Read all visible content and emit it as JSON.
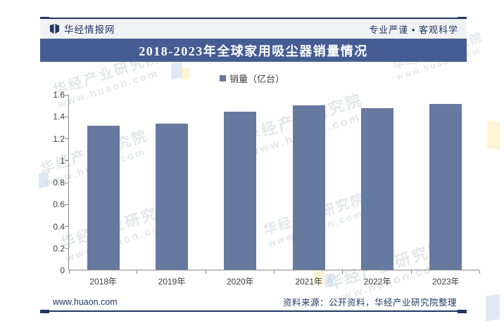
{
  "header": {
    "brand": "华经情报网",
    "slogan": "专业严谨 • 客观科学"
  },
  "banner": {
    "title": "2018-2023年全球家用吸尘器销量情况"
  },
  "legend": {
    "label": "销量（亿台）"
  },
  "chart_data": {
    "type": "bar",
    "title": "2018-2023年全球家用吸尘器销量情况",
    "series_name": "销量（亿台）",
    "categories": [
      "2018年",
      "2019年",
      "2020年",
      "2021年",
      "2022年",
      "2023年"
    ],
    "values": [
      1.31,
      1.33,
      1.44,
      1.5,
      1.47,
      1.51
    ],
    "xlabel": "",
    "ylabel": "销量（亿台）",
    "ylim": [
      0,
      1.6
    ],
    "y_ticks": [
      "0",
      "0.2",
      "0.4",
      "0.6",
      "0.8",
      "1",
      "1.2",
      "1.4",
      "1.6"
    ],
    "grid": false,
    "legend_position": "top",
    "bar_color": "#66799F"
  },
  "footer": {
    "site": "www.huaon.com",
    "source": "资料来源：公开资料，华经产业研究院整理"
  },
  "watermark": {
    "line1": "华经产业研究院",
    "line2": "www.huaon.com"
  },
  "colors": {
    "navy": "#1F3864",
    "banner_bg": "#455D93",
    "bar": "#66799F",
    "header_bg": "#F1F2F4",
    "axis": "#8A8A8A"
  }
}
